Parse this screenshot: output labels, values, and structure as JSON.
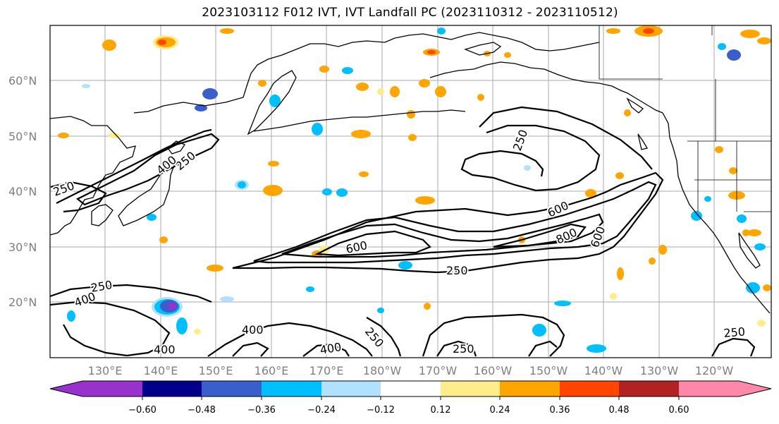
{
  "title": "2023103112 F012 IVT, IVT Landfall PC (2023110312 - 2023110512)",
  "latitude_labels": [
    "20°N",
    "30°N",
    "40°N",
    "50°N",
    "60°N"
  ],
  "longitude_labels": [
    "130°E",
    "140°E",
    "150°E",
    "160°E",
    "170°E",
    "180°W",
    "170°W",
    "160°W",
    "150°W",
    "140°W",
    "130°W",
    "120°W"
  ],
  "contour_labels": [
    "250",
    "250",
    "250",
    "250",
    "250",
    "250",
    "250",
    "400",
    "400",
    "400",
    "400",
    "400",
    "600",
    "600",
    "800",
    "600",
    "250"
  ],
  "colorbar": {
    "ticks": [
      "−0.60",
      "−0.48",
      "−0.36",
      "−0.24",
      "−0.12",
      "0.12",
      "0.24",
      "0.36",
      "0.48",
      "0.60"
    ],
    "colors": [
      "#9932cc",
      "#00008b",
      "#3a5fcd",
      "#00bfff",
      "#b0e2ff",
      "#ffffff",
      "#ffec8b",
      "#ffa500",
      "#ff4500",
      "#b22222",
      "#ff88aa"
    ]
  },
  "map_colors": {
    "ocean": "#ffffff",
    "coast": "#000000",
    "grid": "#a0a0a0"
  }
}
